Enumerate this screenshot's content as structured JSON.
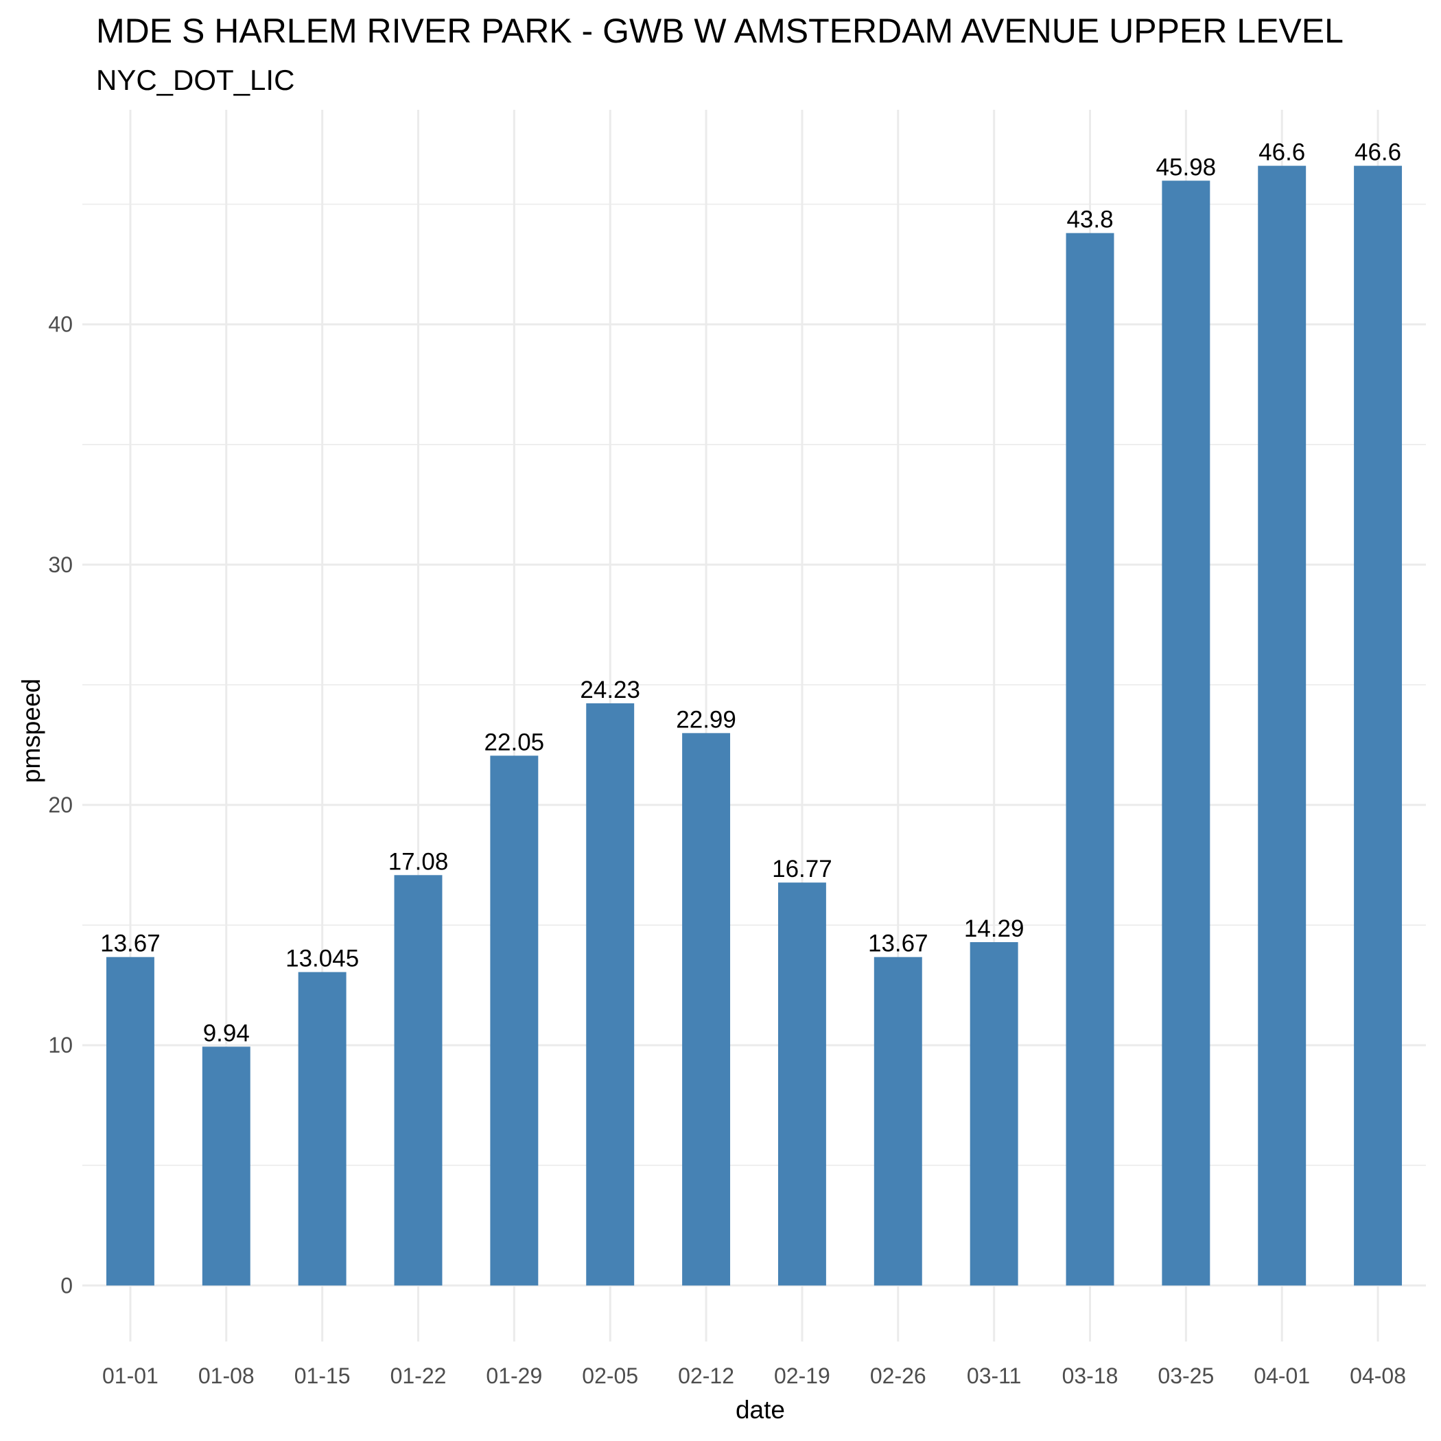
{
  "chart_data": {
    "type": "bar",
    "title": "MDE S HARLEM RIVER PARK - GWB W AMSTERDAM AVENUE UPPER LEVEL",
    "subtitle": "NYC_DOT_LIC",
    "xlabel": "date",
    "ylabel": "pmspeed",
    "categories": [
      "01-01",
      "01-08",
      "01-15",
      "01-22",
      "01-29",
      "02-05",
      "02-12",
      "02-19",
      "02-26",
      "03-11",
      "03-18",
      "03-25",
      "04-01",
      "04-08"
    ],
    "values": [
      13.67,
      9.94,
      13.045,
      17.08,
      22.05,
      24.23,
      22.99,
      16.77,
      13.67,
      14.29,
      43.8,
      45.98,
      46.6,
      46.6
    ],
    "value_labels": [
      "13.67",
      "9.94",
      "13.045",
      "17.08",
      "22.05",
      "24.23",
      "22.99",
      "16.77",
      "13.67",
      "14.29",
      "43.8",
      "45.98",
      "46.6",
      "46.6"
    ],
    "y_ticks": [
      0,
      10,
      20,
      30,
      40
    ],
    "y_tick_labels": [
      "0",
      "10",
      "20",
      "30",
      "40"
    ],
    "ylim": [
      -2.33,
      48.93
    ],
    "bar_color": "#4682b4",
    "grid": true,
    "legend": "none"
  }
}
